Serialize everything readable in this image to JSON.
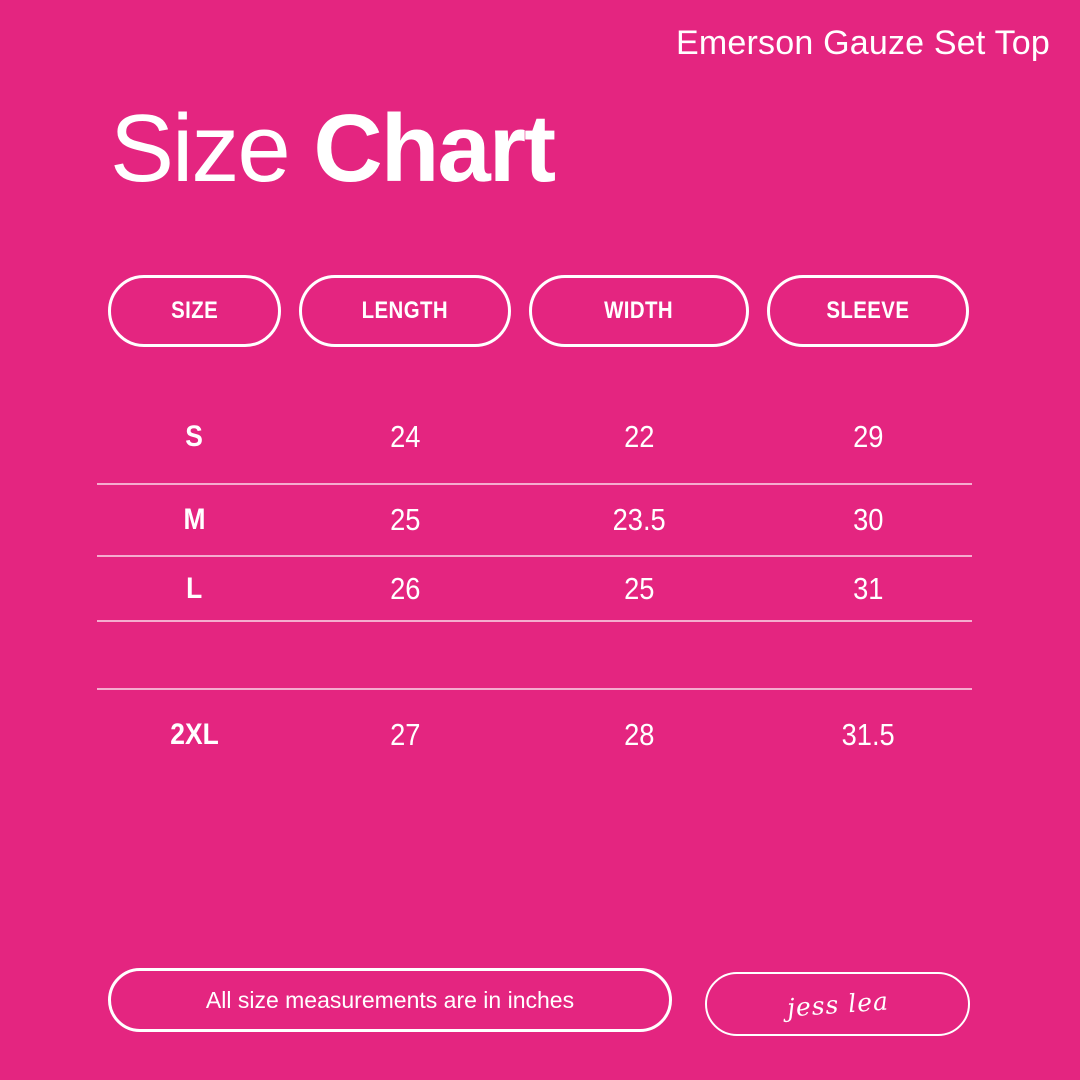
{
  "canvas": {
    "background_color": "#E42580",
    "text_color": "#FFFFFF",
    "divider_color": "rgba(255,255,255,0.62)"
  },
  "header": {
    "product_name": "Emerson Gauze Set Top"
  },
  "title": {
    "light": "Size",
    "bold": "Chart"
  },
  "chart_data": {
    "type": "table",
    "title": "Size Chart",
    "columns": [
      "SIZE",
      "LENGTH",
      "WIDTH",
      "SLEEVE"
    ],
    "rows": [
      [
        "S",
        "24",
        "22",
        "29"
      ],
      [
        "M",
        "25",
        "23.5",
        "30"
      ],
      [
        "L",
        "26",
        "25",
        "31"
      ],
      [
        "",
        "",
        "",
        ""
      ],
      [
        "2XL",
        "27",
        "28",
        "31.5"
      ]
    ],
    "units": "inches"
  },
  "footer": {
    "note": "All size measurements are in inches",
    "signature": "jess lea"
  }
}
